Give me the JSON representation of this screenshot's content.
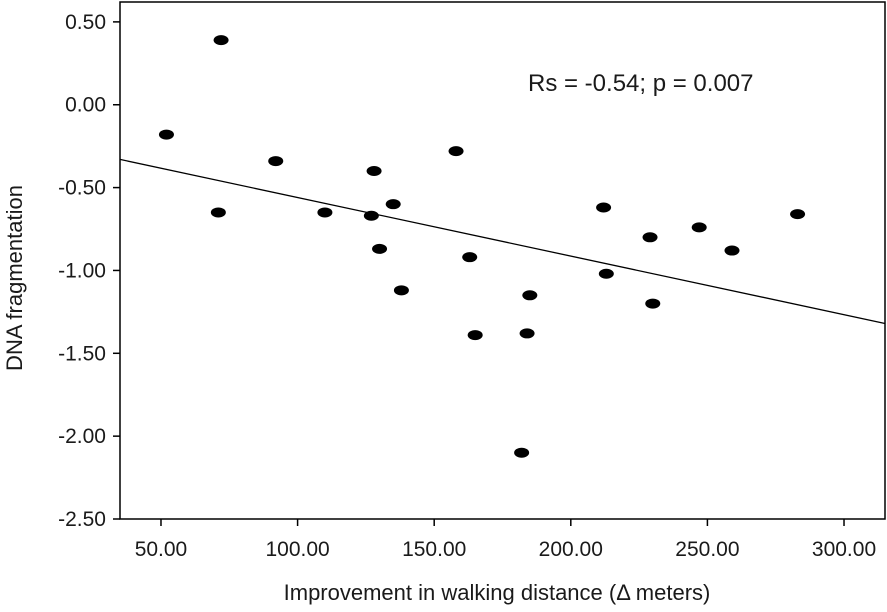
{
  "chart_data": {
    "type": "scatter",
    "title": "",
    "xlabel": "Improvement in walking distance (Δ meters)",
    "ylabel": "DNA fragmentation",
    "xlim": [
      35,
      315
    ],
    "ylim": [
      -2.5,
      0.62
    ],
    "x_ticks": [
      50,
      100,
      150,
      200,
      250,
      300
    ],
    "x_tick_labels": [
      "50.00",
      "100.00",
      "150.00",
      "200.00",
      "250.00",
      "300.00"
    ],
    "y_ticks": [
      0.5,
      0,
      -0.5,
      -1,
      -1.5,
      -2,
      -2.5
    ],
    "y_tick_labels": [
      "0.50",
      "0.00",
      "-0.50",
      "-1.00",
      "-1.50",
      "-2.00",
      "-2.50"
    ],
    "annotation": "Rs = -0.54; p = 0.007",
    "grid": false,
    "legend": "none",
    "marker_color": "#000000",
    "points": [
      {
        "x": 52,
        "y": -0.18
      },
      {
        "x": 72,
        "y": 0.39
      },
      {
        "x": 71,
        "y": -0.65
      },
      {
        "x": 92,
        "y": -0.34
      },
      {
        "x": 110,
        "y": -0.65
      },
      {
        "x": 128,
        "y": -0.4
      },
      {
        "x": 127,
        "y": -0.67
      },
      {
        "x": 130,
        "y": -0.87
      },
      {
        "x": 135,
        "y": -0.6
      },
      {
        "x": 138,
        "y": -1.12
      },
      {
        "x": 158,
        "y": -0.28
      },
      {
        "x": 163,
        "y": -0.92
      },
      {
        "x": 165,
        "y": -1.39
      },
      {
        "x": 182,
        "y": -2.1
      },
      {
        "x": 184,
        "y": -1.38
      },
      {
        "x": 185,
        "y": -1.15
      },
      {
        "x": 212,
        "y": -0.62
      },
      {
        "x": 213,
        "y": -1.02
      },
      {
        "x": 229,
        "y": -0.8
      },
      {
        "x": 230,
        "y": -1.2
      },
      {
        "x": 247,
        "y": -0.74
      },
      {
        "x": 259,
        "y": -0.88
      },
      {
        "x": 283,
        "y": -0.66
      }
    ],
    "trendline": {
      "x": [
        35,
        315
      ],
      "y": [
        -0.33,
        -1.32
      ]
    }
  }
}
